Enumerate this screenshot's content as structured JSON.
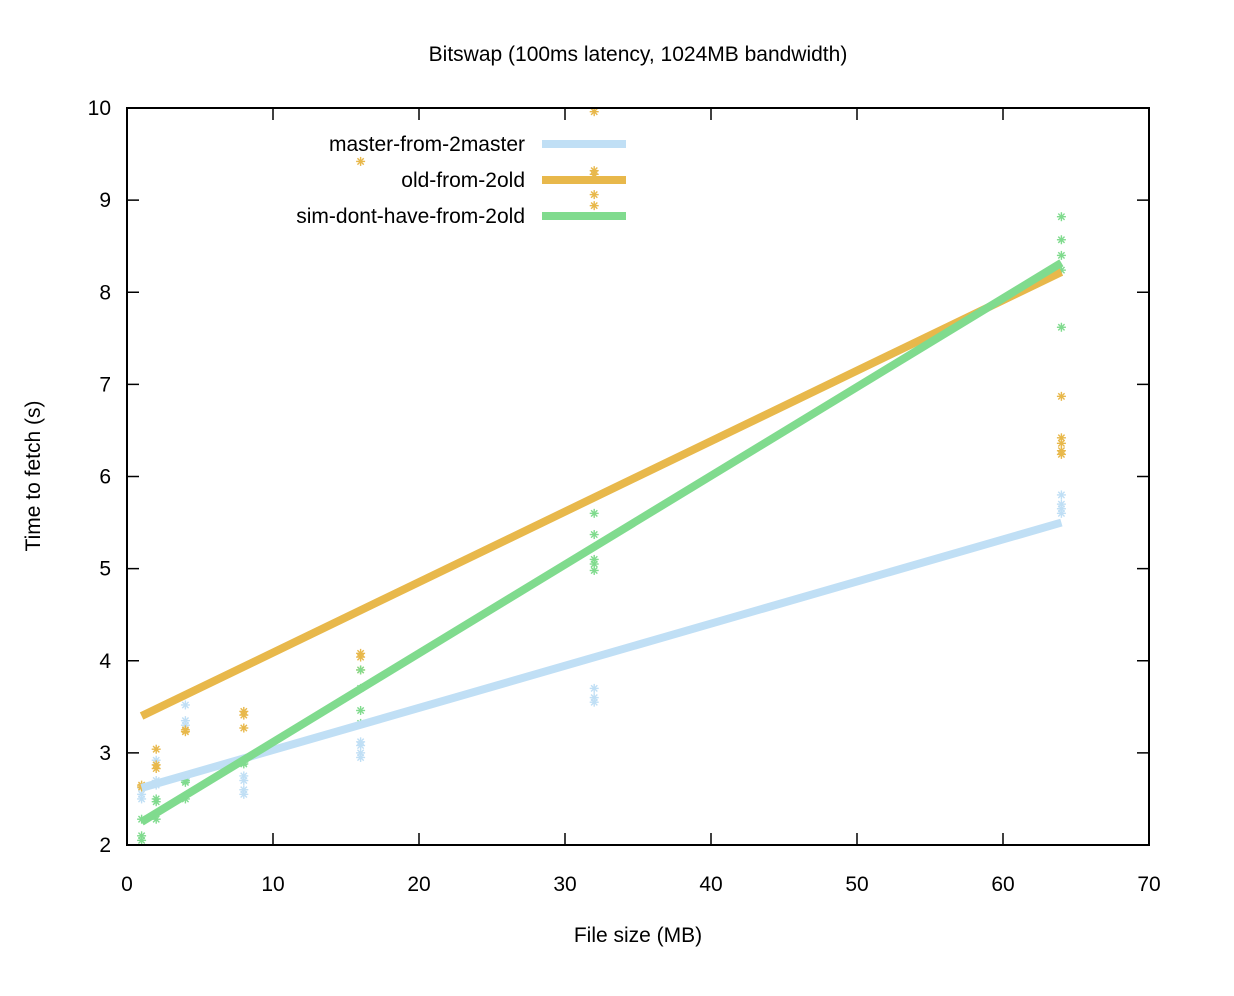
{
  "chart_data": {
    "type": "scatter",
    "title": "Bitswap (100ms latency, 1024MB bandwidth)",
    "xlabel": "File size (MB)",
    "ylabel": "Time to fetch (s)",
    "xlim": [
      0,
      70
    ],
    "ylim": [
      2,
      10
    ],
    "xticks": [
      0,
      10,
      20,
      30,
      40,
      50,
      60,
      70
    ],
    "yticks": [
      2,
      3,
      4,
      5,
      6,
      7,
      8,
      9,
      10
    ],
    "legend_position": "top-left",
    "series": [
      {
        "name": "master-from-2master",
        "color": "#c0dff5",
        "points": [
          [
            1,
            2.5
          ],
          [
            1,
            2.55
          ],
          [
            1,
            2.62
          ],
          [
            2,
            2.65
          ],
          [
            2,
            2.7
          ],
          [
            2,
            2.92
          ],
          [
            4,
            2.72
          ],
          [
            4,
            3.3
          ],
          [
            4,
            3.35
          ],
          [
            4,
            3.52
          ],
          [
            8,
            2.55
          ],
          [
            8,
            2.6
          ],
          [
            8,
            2.7
          ],
          [
            8,
            2.75
          ],
          [
            16,
            2.95
          ],
          [
            16,
            3.0
          ],
          [
            16,
            3.08
          ],
          [
            16,
            3.12
          ],
          [
            32,
            3.55
          ],
          [
            32,
            3.6
          ],
          [
            32,
            3.7
          ],
          [
            64,
            5.6
          ],
          [
            64,
            5.65
          ],
          [
            64,
            5.7
          ],
          [
            64,
            5.8
          ]
        ],
        "fit": [
          [
            1,
            2.62
          ],
          [
            64,
            5.5
          ]
        ]
      },
      {
        "name": "old-from-2old",
        "color": "#e8b84b",
        "points": [
          [
            1,
            2.63
          ],
          [
            1,
            2.65
          ],
          [
            2,
            2.83
          ],
          [
            2,
            2.87
          ],
          [
            2,
            3.04
          ],
          [
            4,
            3.23
          ],
          [
            4,
            3.25
          ],
          [
            8,
            3.27
          ],
          [
            8,
            3.41
          ],
          [
            8,
            3.45
          ],
          [
            16,
            3.9
          ],
          [
            16,
            4.04
          ],
          [
            16,
            4.08
          ],
          [
            16,
            9.42
          ],
          [
            32,
            8.94
          ],
          [
            32,
            9.06
          ],
          [
            32,
            9.28
          ],
          [
            32,
            9.32
          ],
          [
            32,
            9.96
          ],
          [
            64,
            6.24
          ],
          [
            64,
            6.28
          ],
          [
            64,
            6.36
          ],
          [
            64,
            6.42
          ],
          [
            64,
            6.87
          ]
        ],
        "fit": [
          [
            1,
            3.4
          ],
          [
            64,
            8.22
          ]
        ]
      },
      {
        "name": "sim-dont-have-from-2old",
        "color": "#80db8e",
        "points": [
          [
            1,
            2.05
          ],
          [
            1,
            2.1
          ],
          [
            1,
            2.28
          ],
          [
            2,
            2.28
          ],
          [
            2,
            2.47
          ],
          [
            2,
            2.5
          ],
          [
            4,
            2.5
          ],
          [
            4,
            2.68
          ],
          [
            4,
            2.7
          ],
          [
            8,
            2.88
          ],
          [
            8,
            2.9
          ],
          [
            16,
            3.32
          ],
          [
            16,
            3.46
          ],
          [
            16,
            3.7
          ],
          [
            16,
            3.9
          ],
          [
            32,
            4.98
          ],
          [
            32,
            5.05
          ],
          [
            32,
            5.1
          ],
          [
            32,
            5.37
          ],
          [
            32,
            5.6
          ],
          [
            64,
            7.62
          ],
          [
            64,
            8.24
          ],
          [
            64,
            8.4
          ],
          [
            64,
            8.57
          ],
          [
            64,
            8.82
          ]
        ],
        "fit": [
          [
            1,
            2.25
          ],
          [
            64,
            8.32
          ]
        ]
      }
    ]
  }
}
